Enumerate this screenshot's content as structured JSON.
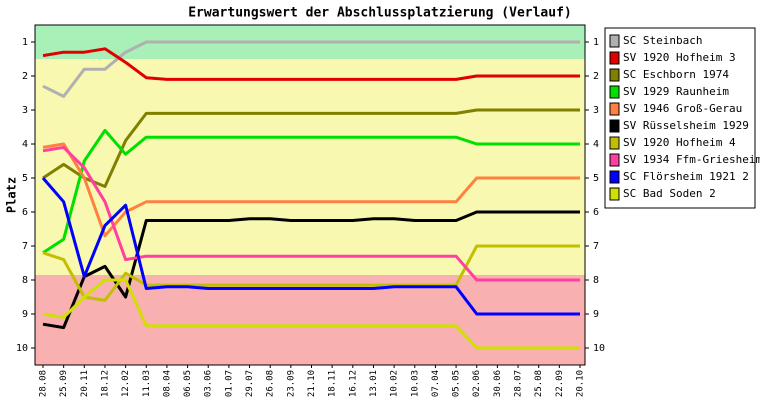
{
  "chart_data": {
    "type": "line",
    "title": "Erwartungswert der Abschlussplatzierung (Verlauf)",
    "y_label": "Platz",
    "categories": [
      "28.08",
      "25.09",
      "20.11",
      "18.12",
      "12.02",
      "11.03",
      "08.04",
      "06.05",
      "03.06",
      "01.07",
      "29.07",
      "26.08",
      "23.09",
      "21.10",
      "18.11",
      "16.12",
      "13.01",
      "10.02",
      "10.03",
      "07.04",
      "05.05",
      "02.06",
      "30.06",
      "28.07",
      "25.08",
      "22.09",
      "20.10"
    ],
    "ylim": [
      0.5,
      10.5
    ],
    "inverted": true,
    "yticks": [
      1,
      2,
      3,
      4,
      5,
      6,
      7,
      8,
      9,
      10
    ],
    "legend": "right",
    "series": [
      {
        "name": "SC Steinbach",
        "color": "#b0b0b0",
        "values": [
          2.3,
          2.6,
          1.8,
          1.8,
          1.3,
          1,
          1,
          1,
          1,
          1,
          1,
          1,
          1,
          1,
          1,
          1,
          1,
          1,
          1,
          1,
          1,
          1,
          1,
          1,
          1,
          1,
          1
        ]
      },
      {
        "name": "SV 1920 Hofheim 3",
        "color": "#e00000",
        "values": [
          1.4,
          1.3,
          1.3,
          1.2,
          1.6,
          2.05,
          2.1,
          2.1,
          2.1,
          2.1,
          2.1,
          2.1,
          2.1,
          2.1,
          2.1,
          2.1,
          2.1,
          2.1,
          2.1,
          2.1,
          2.1,
          2,
          2,
          2,
          2,
          2,
          2
        ]
      },
      {
        "name": "SC Eschborn 1974",
        "color": "#808000",
        "values": [
          5,
          4.6,
          5,
          5.25,
          3.9,
          3.1,
          3.1,
          3.1,
          3.1,
          3.1,
          3.1,
          3.1,
          3.1,
          3.1,
          3.1,
          3.1,
          3.1,
          3.1,
          3.1,
          3.1,
          3.1,
          3,
          3,
          3,
          3,
          3,
          3
        ]
      },
      {
        "name": "SV 1929 Raunheim",
        "color": "#00e000",
        "values": [
          7.2,
          6.8,
          4.5,
          3.6,
          4.3,
          3.8,
          3.8,
          3.8,
          3.8,
          3.8,
          3.8,
          3.8,
          3.8,
          3.8,
          3.8,
          3.8,
          3.8,
          3.8,
          3.8,
          3.8,
          3.8,
          4,
          4,
          4,
          4,
          4,
          4
        ]
      },
      {
        "name": "SV 1946 Groß-Gerau",
        "color": "#ff8040",
        "values": [
          4.1,
          4,
          5,
          6.7,
          6,
          5.7,
          5.7,
          5.7,
          5.7,
          5.7,
          5.7,
          5.7,
          5.7,
          5.7,
          5.7,
          5.7,
          5.7,
          5.7,
          5.7,
          5.7,
          5.7,
          5,
          5,
          5,
          5,
          5,
          5
        ]
      },
      {
        "name": "SV Rüsselsheim 1929",
        "color": "#000000",
        "values": [
          9.3,
          9.4,
          7.9,
          7.6,
          8.5,
          6.25,
          6.25,
          6.25,
          6.25,
          6.25,
          6.2,
          6.2,
          6.25,
          6.25,
          6.25,
          6.25,
          6.2,
          6.2,
          6.25,
          6.25,
          6.25,
          6,
          6,
          6,
          6,
          6,
          6
        ]
      },
      {
        "name": "SV 1920 Hofheim 4",
        "color": "#c0c000",
        "values": [
          7.2,
          7.4,
          8.5,
          8.6,
          7.8,
          8.15,
          8.15,
          8.15,
          8.15,
          8.15,
          8.15,
          8.15,
          8.15,
          8.15,
          8.15,
          8.15,
          8.15,
          8.15,
          8.15,
          8.15,
          8.15,
          7,
          7,
          7,
          7,
          7,
          7
        ]
      },
      {
        "name": "SV 1934 Ffm-Griesheim",
        "color": "#ff40a0",
        "values": [
          4.2,
          4.1,
          4.7,
          5.7,
          7.4,
          7.3,
          7.3,
          7.3,
          7.3,
          7.3,
          7.3,
          7.3,
          7.3,
          7.3,
          7.3,
          7.3,
          7.3,
          7.3,
          7.3,
          7.3,
          7.3,
          8,
          8,
          8,
          8,
          8,
          8
        ]
      },
      {
        "name": "SC Flörsheim 1921 2",
        "color": "#0000ff",
        "values": [
          5,
          5.7,
          7.9,
          6.4,
          5.8,
          8.25,
          8.2,
          8.2,
          8.25,
          8.25,
          8.25,
          8.25,
          8.25,
          8.25,
          8.25,
          8.25,
          8.25,
          8.2,
          8.2,
          8.2,
          8.2,
          9,
          9,
          9,
          9,
          9,
          9
        ]
      },
      {
        "name": "SC Bad Soden 2",
        "color": "#d0e000",
        "values": [
          9,
          9.1,
          8.5,
          8,
          8,
          9.35,
          9.35,
          9.35,
          9.35,
          9.35,
          9.35,
          9.35,
          9.35,
          9.35,
          9.35,
          9.35,
          9.35,
          9.35,
          9.35,
          9.35,
          9.35,
          10,
          10,
          10,
          10,
          10,
          10
        ]
      }
    ]
  }
}
